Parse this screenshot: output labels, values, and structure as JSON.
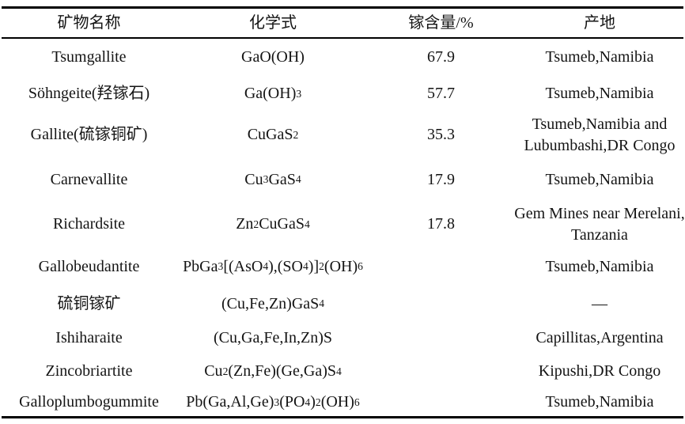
{
  "table": {
    "columns": [
      "矿物名称",
      "化学式",
      "镓含量/%",
      "产地"
    ],
    "rows": [
      {
        "name": "Tsumgallite",
        "formula": "GaO(OH)",
        "content": "67.9",
        "locality": "Tsumeb,Namibia"
      },
      {
        "name": "Söhngeite(羟镓石)",
        "formula": "Ga(OH)_3",
        "content": "57.7",
        "locality": "Tsumeb,Namibia"
      },
      {
        "name": "Gallite(硫镓铜矿)",
        "formula": "CuGaS_2",
        "content": "35.3",
        "locality": "Tsumeb,Namibia and\nLubumbashi,DR Congo"
      },
      {
        "name": "Carnevallite",
        "formula": "Cu_3GaS_4",
        "content": "17.9",
        "locality": "Tsumeb,Namibia"
      },
      {
        "name": "Richardsite",
        "formula": "Zn_2CuGaS_4",
        "content": "17.8",
        "locality": "Gem Mines near Merelani,\nTanzania"
      },
      {
        "name": "Gallobeudantite",
        "formula": "PbGa_3[(AsO_4),(SO_4)]_2(OH)_6",
        "content": "",
        "locality": "Tsumeb,Namibia"
      },
      {
        "name": "硫铜镓矿",
        "formula": "(Cu,Fe,Zn)GaS_4",
        "content": "",
        "locality": "—"
      },
      {
        "name": "Ishiharaite",
        "formula": "(Cu,Ga,Fe,In,Zn)S",
        "content": "",
        "locality": "Capillitas,Argentina"
      },
      {
        "name": "Zincobriartite",
        "formula": "Cu_2(Zn,Fe)(Ge,Ga)S_4",
        "content": "",
        "locality": "Kipushi,DR Congo"
      },
      {
        "name": "Galloplumbogummite",
        "formula": "Pb(Ga,Al,Ge)_3(PO_4)_2(OH)_6",
        "content": "",
        "locality": "Tsumeb,Namibia"
      }
    ]
  },
  "colors": {
    "text": "#141414",
    "rule": "#000000",
    "background": "#ffffff"
  }
}
